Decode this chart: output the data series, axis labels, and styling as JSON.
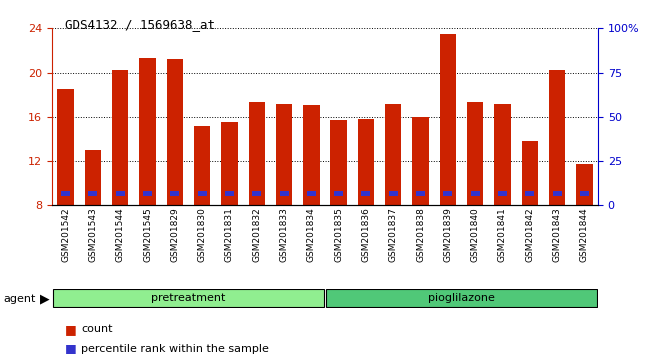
{
  "title": "GDS4132 / 1569638_at",
  "samples": [
    "GSM201542",
    "GSM201543",
    "GSM201544",
    "GSM201545",
    "GSM201829",
    "GSM201830",
    "GSM201831",
    "GSM201832",
    "GSM201833",
    "GSM201834",
    "GSM201835",
    "GSM201836",
    "GSM201837",
    "GSM201838",
    "GSM201839",
    "GSM201840",
    "GSM201841",
    "GSM201842",
    "GSM201843",
    "GSM201844"
  ],
  "count_values": [
    18.5,
    13.0,
    20.2,
    21.3,
    21.2,
    15.2,
    15.5,
    17.3,
    17.2,
    17.1,
    15.7,
    15.8,
    17.2,
    16.0,
    23.5,
    17.3,
    17.2,
    13.8,
    20.2,
    11.7
  ],
  "percentile_values": [
    0.35,
    0.25,
    0.35,
    0.35,
    0.35,
    0.35,
    0.35,
    0.35,
    0.35,
    0.35,
    0.35,
    0.35,
    0.35,
    0.35,
    0.35,
    0.35,
    0.35,
    0.35,
    0.35,
    0.25
  ],
  "base_value": 8.0,
  "ylim_left": [
    8,
    24
  ],
  "ylim_right": [
    0,
    100
  ],
  "yticks_left": [
    8,
    12,
    16,
    20,
    24
  ],
  "yticks_right": [
    0,
    25,
    50,
    75,
    100
  ],
  "yticklabels_right": [
    "0",
    "25",
    "50",
    "75",
    "100%"
  ],
  "group_labels": [
    "pretreatment",
    "pioglilazone"
  ],
  "group_boundaries": [
    0,
    10,
    20
  ],
  "group_colors": [
    "#90EE90",
    "#50C850"
  ],
  "bar_width": 0.6,
  "count_color": "#CC2200",
  "percentile_color": "#3333CC",
  "background_color": "#C8C8C8",
  "title_color": "#000000",
  "left_axis_color": "#CC2200",
  "right_axis_color": "#0000CC",
  "grid_color": "#000000",
  "legend_count_label": "count",
  "legend_percentile_label": "percentile rank within the sample",
  "agent_label": "agent",
  "pretreatment_count": 10,
  "pioglilazone_label": "pioglilazone"
}
